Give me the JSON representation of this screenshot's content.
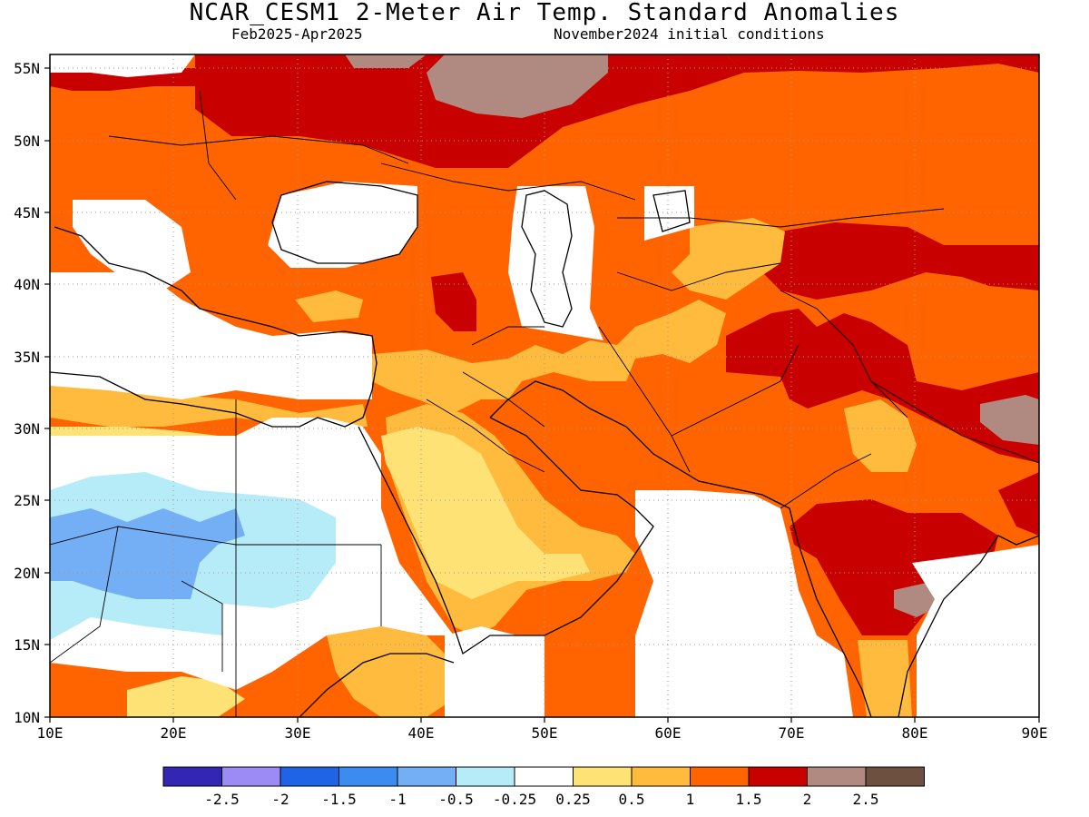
{
  "header": {
    "title": "NCAR_CESM1 2-Meter Air Temp. Standard Anomalies",
    "period": "Feb2025-Apr2025",
    "init": "November2024 initial conditions"
  },
  "map": {
    "lon_ticks": [
      "10E",
      "20E",
      "30E",
      "40E",
      "50E",
      "60E",
      "70E",
      "80E",
      "90E"
    ],
    "lat_ticks": [
      "10N",
      "15N",
      "20N",
      "25N",
      "30N",
      "35N",
      "40N",
      "45N",
      "50N",
      "55N"
    ],
    "lon_range": [
      10,
      90
    ],
    "lat_range": [
      10,
      56
    ],
    "grid": "dotted"
  },
  "legend": {
    "colors": [
      "#3326b4",
      "#9d8bf5",
      "#1f63e6",
      "#3b8bf0",
      "#74aff5",
      "#b6ecf7",
      "#ffffff",
      "#ffe276",
      "#ffbb3d",
      "#ff6400",
      "#c80000",
      "#b08a80",
      "#6e5040"
    ],
    "labels": [
      "-2.5",
      "-2",
      "-1.5",
      "-1",
      "-0.5",
      "-0.25",
      "0.25",
      "0.5",
      "1",
      "1.5",
      "2",
      "2.5"
    ]
  }
}
